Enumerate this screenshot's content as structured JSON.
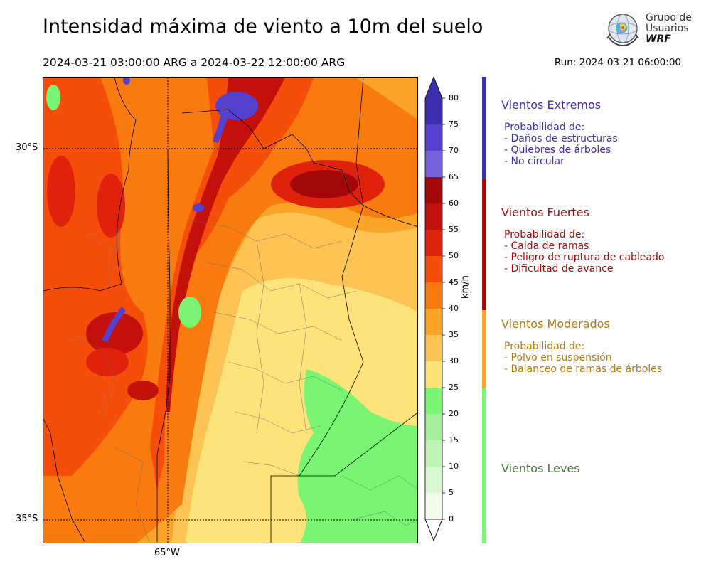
{
  "header": {
    "title": "Intensidad máxima de viento a 10m del suelo",
    "period": "2024-03-21 03:00:00 ARG  a  2024-03-22 12:00:00 ARG",
    "run": "Run: 2024-03-21 06:00:00"
  },
  "logo": {
    "line1": "Grupo de",
    "line2": "Usuarios",
    "line3": "WRF"
  },
  "map": {
    "lat_labels": [
      "30°S",
      "35°S"
    ],
    "lon_labels": [
      "65°W"
    ]
  },
  "colorbar": {
    "unit": "km/h",
    "ticks": [
      "80",
      "75",
      "70",
      "65",
      "60",
      "55",
      "50",
      "45",
      "40",
      "35",
      "30",
      "25",
      "20",
      "15",
      "10",
      "5",
      "0"
    ],
    "colors": {
      "0-5": "#f0fbea",
      "5-10": "#d8f7cf",
      "10-15": "#bff3b5",
      "15-20": "#a3ee98",
      "20-25": "#7af573",
      "25-30": "#fde47a",
      "30-35": "#fdc455",
      "35-40": "#fba428",
      "40-45": "#f97a0f",
      "45-50": "#f54e0a",
      "50-55": "#e0220d",
      "55-60": "#c4100b",
      "60-65": "#a20808",
      "65-70": "#7463dc",
      "70-75": "#5641cf",
      "75-80": "#3b2fb0"
    }
  },
  "categories": [
    {
      "title": "Vientos Extremos",
      "color": "#3b2fb0",
      "sub_header": "Probabilidad de:",
      "items": [
        "- Daños de estructuras",
        "- Quiebres de árboles",
        "- No circular"
      ]
    },
    {
      "title": "Vientos Fuertes",
      "color": "#a20808",
      "sub_header": "Probabilidad de:",
      "items": [
        "- Caida de ramas",
        "- Peligro de ruptura de cableado",
        "- Dificultad de avance"
      ]
    },
    {
      "title": "Vientos Moderados",
      "color": "#b07a10",
      "sub_header": "Probabilidad de:",
      "items": [
        "- Polvo en suspensión",
        "- Balanceo de ramas de árboles"
      ]
    },
    {
      "title": "Vientos Leves",
      "color": "#3a7a2c",
      "sub_header": "",
      "items": []
    }
  ]
}
